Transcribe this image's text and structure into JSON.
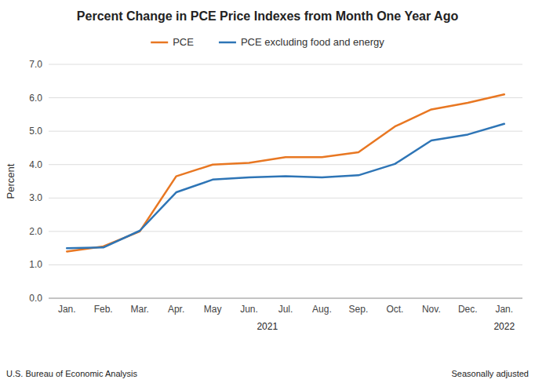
{
  "chart_data": {
    "type": "line",
    "title": "Percent Change in PCE Price Indexes from Month One Year Ago",
    "y_label": "Percent",
    "categories": [
      "Jan.",
      "Feb.",
      "Mar.",
      "Apr.",
      "May",
      "Jun.",
      "Jul.",
      "Aug.",
      "Sep.",
      "Oct.",
      "Nov.",
      "Dec.",
      "Jan."
    ],
    "year_labels": [
      "2021",
      "2022"
    ],
    "series": [
      {
        "name": "PCE",
        "color": "#E87722",
        "values": [
          1.4,
          1.55,
          2.0,
          3.65,
          4.0,
          4.05,
          4.22,
          4.22,
          4.37,
          5.14,
          5.65,
          5.85,
          6.1
        ]
      },
      {
        "name": "PCE excluding food and energy",
        "color": "#2E75B6",
        "values": [
          1.5,
          1.52,
          2.02,
          3.17,
          3.55,
          3.62,
          3.65,
          3.62,
          3.68,
          4.02,
          4.72,
          4.9,
          5.22
        ]
      }
    ],
    "ylim": [
      0.0,
      7.0
    ],
    "yticks": [
      {
        "value": 0.0,
        "label": "0.0"
      },
      {
        "value": 1.0,
        "label": "1.0"
      },
      {
        "value": 2.0,
        "label": "2.0"
      },
      {
        "value": 3.0,
        "label": "3.0"
      },
      {
        "value": 4.0,
        "label": "4.0"
      },
      {
        "value": 5.0,
        "label": "5.0"
      },
      {
        "value": 6.0,
        "label": "6.0"
      },
      {
        "value": 7.0,
        "label": "7.0"
      }
    ],
    "grid": true,
    "legend": "top",
    "source": "U.S. Bureau of Economic Analysis",
    "note": "Seasonally adjusted"
  }
}
